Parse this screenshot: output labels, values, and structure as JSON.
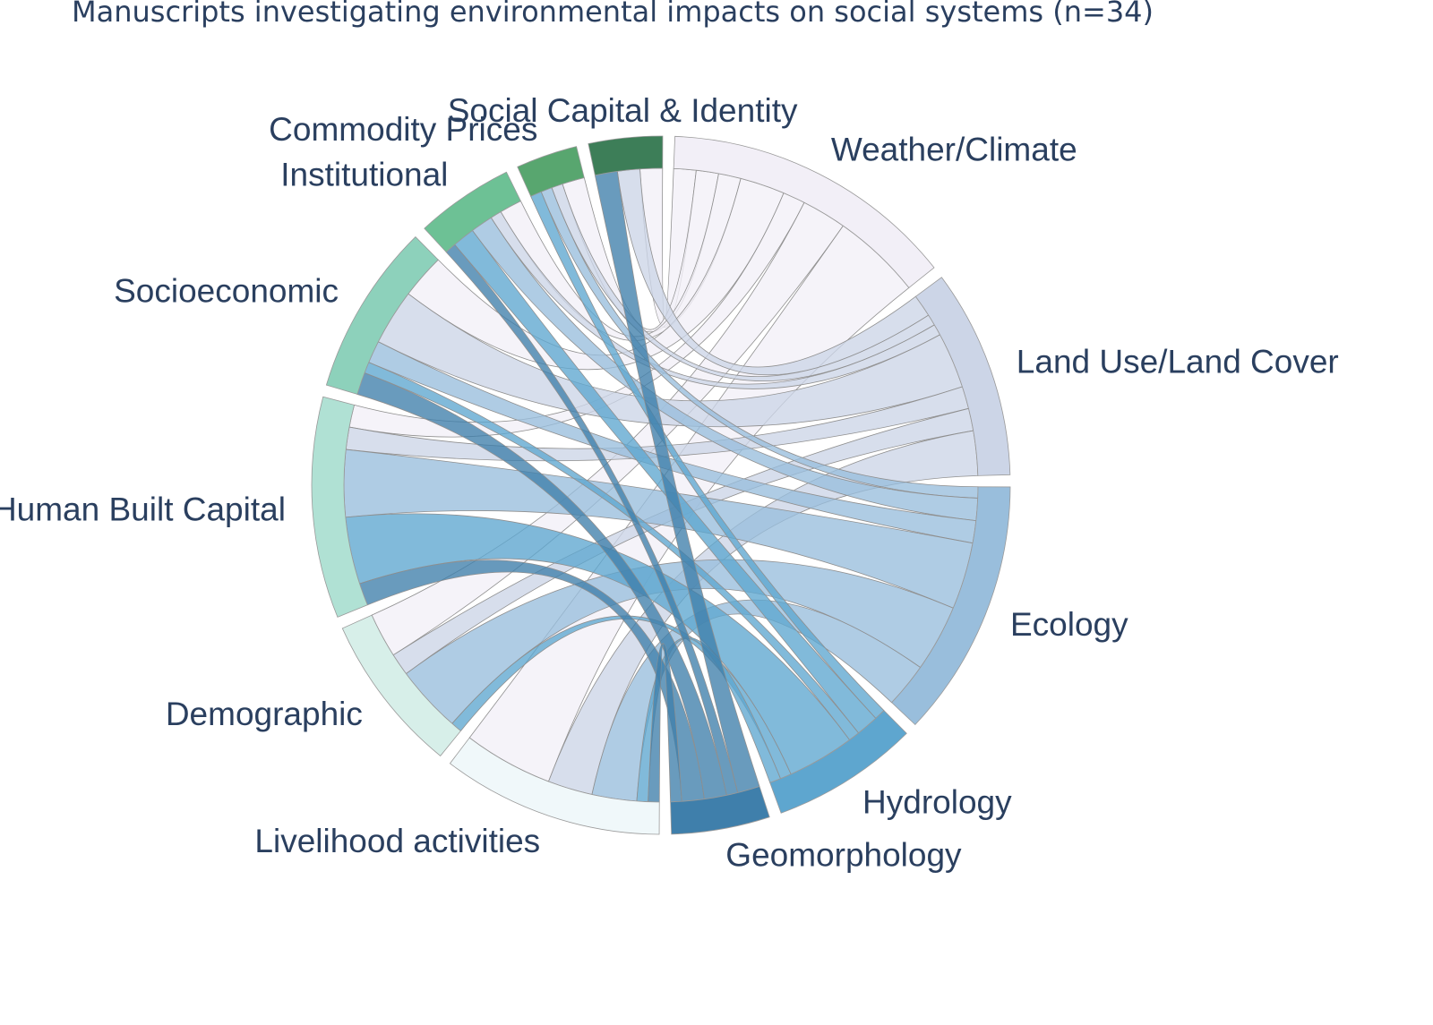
{
  "chart_data": {
    "type": "chord",
    "title": "Manuscripts investigating environmental impacts on social systems (n=34)",
    "nodes": [
      {
        "name": "Weather/Climate",
        "color": "#f2eff7",
        "group": "environmental"
      },
      {
        "name": "Land Use/Land Cover",
        "color": "#ccd5e7",
        "group": "environmental"
      },
      {
        "name": "Ecology",
        "color": "#99bedc",
        "group": "environmental"
      },
      {
        "name": "Hydrology",
        "color": "#5ea6cf",
        "group": "environmental"
      },
      {
        "name": "Geomorphology",
        "color": "#3f7fab",
        "group": "environmental"
      },
      {
        "name": "Livelihood activities",
        "color": "#f0f8fa",
        "group": "social"
      },
      {
        "name": "Demographic",
        "color": "#d7efe9",
        "group": "social"
      },
      {
        "name": "Human Built Capital",
        "color": "#b0e1d4",
        "group": "social"
      },
      {
        "name": "Socioeconomic",
        "color": "#8dd1bb",
        "group": "social"
      },
      {
        "name": "Institutional",
        "color": "#6dc195",
        "group": "social"
      },
      {
        "name": "Commodity Prices",
        "color": "#58a66f",
        "group": "social"
      },
      {
        "name": "Social Capital & Identity",
        "color": "#3d7e58",
        "group": "social"
      }
    ],
    "links": [
      {
        "source": "Weather/Climate",
        "target": "Social Capital & Identity",
        "value": 1
      },
      {
        "source": "Weather/Climate",
        "target": "Commodity Prices",
        "value": 1
      },
      {
        "source": "Weather/Climate",
        "target": "Institutional",
        "value": 1
      },
      {
        "source": "Weather/Climate",
        "target": "Socioeconomic",
        "value": 2
      },
      {
        "source": "Weather/Climate",
        "target": "Human Built Capital",
        "value": 1
      },
      {
        "source": "Weather/Climate",
        "target": "Demographic",
        "value": 2
      },
      {
        "source": "Weather/Climate",
        "target": "Livelihood activities",
        "value": 4
      },
      {
        "source": "Land Use/Land Cover",
        "target": "Social Capital & Identity",
        "value": 1
      },
      {
        "source": "Land Use/Land Cover",
        "target": "Commodity Prices",
        "value": 0.5
      },
      {
        "source": "Land Use/Land Cover",
        "target": "Institutional",
        "value": 0.5
      },
      {
        "source": "Land Use/Land Cover",
        "target": "Socioeconomic",
        "value": 2.5
      },
      {
        "source": "Land Use/Land Cover",
        "target": "Human Built Capital",
        "value": 1
      },
      {
        "source": "Land Use/Land Cover",
        "target": "Demographic",
        "value": 1
      },
      {
        "source": "Land Use/Land Cover",
        "target": "Livelihood activities",
        "value": 2
      },
      {
        "source": "Ecology",
        "target": "Commodity Prices",
        "value": 0.5
      },
      {
        "source": "Ecology",
        "target": "Institutional",
        "value": 1
      },
      {
        "source": "Ecology",
        "target": "Socioeconomic",
        "value": 1
      },
      {
        "source": "Ecology",
        "target": "Human Built Capital",
        "value": 3
      },
      {
        "source": "Ecology",
        "target": "Demographic",
        "value": 3
      },
      {
        "source": "Ecology",
        "target": "Livelihood activities",
        "value": 2
      },
      {
        "source": "Hydrology",
        "target": "Commodity Prices",
        "value": 0.5
      },
      {
        "source": "Hydrology",
        "target": "Institutional",
        "value": 1
      },
      {
        "source": "Hydrology",
        "target": "Socioeconomic",
        "value": 0.5
      },
      {
        "source": "Hydrology",
        "target": "Human Built Capital",
        "value": 3
      },
      {
        "source": "Hydrology",
        "target": "Demographic",
        "value": 0.5
      },
      {
        "source": "Hydrology",
        "target": "Livelihood activities",
        "value": 0.5
      },
      {
        "source": "Geomorphology",
        "target": "Social Capital & Identity",
        "value": 1
      },
      {
        "source": "Geomorphology",
        "target": "Institutional",
        "value": 0.5
      },
      {
        "source": "Geomorphology",
        "target": "Socioeconomic",
        "value": 1
      },
      {
        "source": "Geomorphology",
        "target": "Human Built Capital",
        "value": 1
      },
      {
        "source": "Geomorphology",
        "target": "Livelihood activities",
        "value": 0.5
      }
    ]
  }
}
